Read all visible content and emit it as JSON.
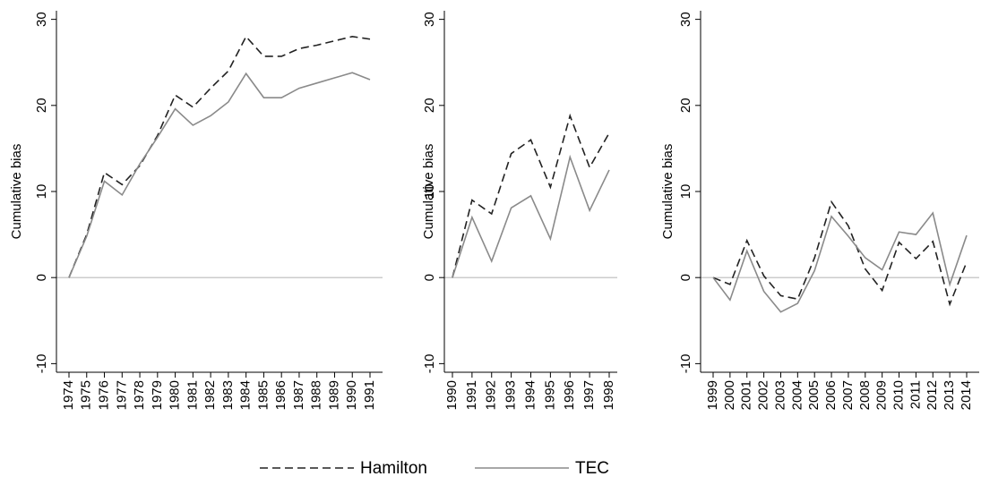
{
  "chart_data": [
    {
      "type": "line",
      "y_label": "Cumulative bias",
      "categories": [
        "1974",
        "1975",
        "1976",
        "1977",
        "1978",
        "1979",
        "1980",
        "1981",
        "1982",
        "1983",
        "1984",
        "1985",
        "1986",
        "1987",
        "1988",
        "1989",
        "1990",
        "1991"
      ],
      "series": [
        {
          "values": [
            0,
            5,
            12.2,
            10.8,
            13,
            16.5,
            21.2,
            19.8,
            22,
            24,
            28,
            25.7,
            25.7,
            26.6,
            27,
            27.5,
            28,
            27.7
          ]
        },
        {
          "values": [
            0,
            4.8,
            11.2,
            9.6,
            13.2,
            16.3,
            19.6,
            17.7,
            18.8,
            20.4,
            23.7,
            20.9,
            20.9,
            22,
            22.6,
            23.2,
            23.8,
            23
          ]
        }
      ],
      "ylim": [
        -11,
        31
      ],
      "yticks": [
        -10,
        0,
        10,
        20,
        30
      ],
      "zero_line": true
    },
    {
      "type": "line",
      "y_label": "Cumulative bias",
      "categories": [
        "1990",
        "1991",
        "1992",
        "1993",
        "1994",
        "1995",
        "1996",
        "1997",
        "1998"
      ],
      "series": [
        {
          "values": [
            0,
            9,
            7.4,
            14.4,
            16,
            10.5,
            18.8,
            12.8,
            16.8
          ]
        },
        {
          "values": [
            0,
            7,
            1.9,
            8.1,
            9.5,
            4.5,
            14,
            7.8,
            12.5
          ]
        }
      ],
      "ylim": [
        -11,
        31
      ],
      "yticks": [
        -10,
        0,
        10,
        20,
        30
      ],
      "zero_line": true
    },
    {
      "type": "line",
      "y_label": "Cumulative bias",
      "categories": [
        "1999",
        "2000",
        "2001",
        "2002",
        "2003",
        "2004",
        "2005",
        "2006",
        "2007",
        "2008",
        "2009",
        "2010",
        "2011",
        "2012",
        "2013",
        "2014"
      ],
      "series": [
        {
          "values": [
            0,
            -0.8,
            4.3,
            0.2,
            -2.1,
            -2.5,
            2.3,
            8.8,
            6,
            1,
            -1.5,
            4.1,
            2.2,
            4.2,
            -3.1,
            1.8
          ]
        },
        {
          "values": [
            0,
            -2.6,
            3.1,
            -1.6,
            -4,
            -3,
            0.8,
            7.1,
            4.8,
            2.3,
            0.9,
            5.3,
            5,
            7.5,
            -0.8,
            4.9
          ]
        }
      ],
      "ylim": [
        -11,
        31
      ],
      "yticks": [
        -10,
        0,
        10,
        20,
        30
      ],
      "zero_line": true
    }
  ],
  "legend": [
    {
      "name": "Hamilton",
      "color": "#222222",
      "dashed": true
    },
    {
      "name": "TEC",
      "color": "#8a8a8a",
      "dashed": false
    }
  ]
}
